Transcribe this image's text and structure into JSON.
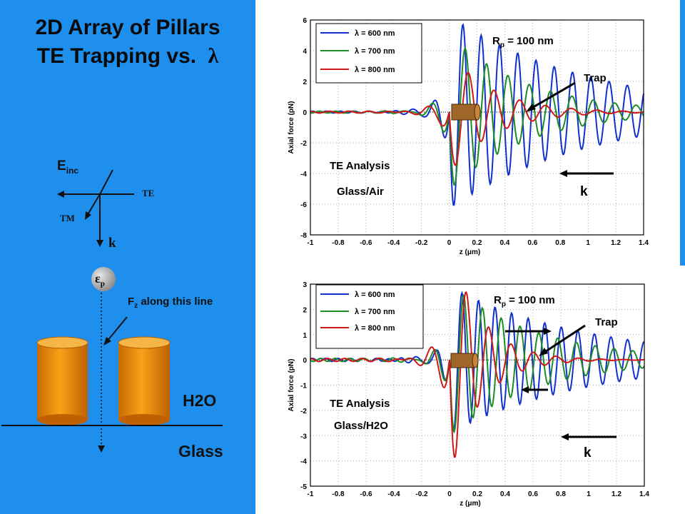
{
  "title": {
    "line1": "2D Array of Pillars",
    "line2_prefix": "TE Trapping vs.",
    "line2_symbol": "λ"
  },
  "diagram": {
    "e_inc_main": "E",
    "e_inc_sub": "inc",
    "te_label": "TE",
    "tm_label": "TM",
    "k_label": "k",
    "particle_label": "ε",
    "particle_sub": "p",
    "fz_main": "F",
    "fz_sub": "z",
    "fz_rest": " along this line",
    "medium_label": "H2O",
    "substrate_label": "Glass",
    "colors": {
      "panel": "#1f8fee",
      "pillar": "#f5a21c",
      "pillar_top": "#f0b345",
      "particle": "#b8b8b8"
    }
  },
  "chart_data": [
    {
      "type": "line",
      "ylabel": "Axial force (pN)",
      "xlabel_main": "z (",
      "xlabel_unit": "μm",
      "xlabel_close": ")",
      "xlim": [
        -1,
        1.4
      ],
      "ylim": [
        -8,
        6
      ],
      "xticks": [
        "-1",
        "-0.8",
        "-0.6",
        "-0.4",
        "-0.2",
        "0",
        "0.2",
        "0.4",
        "0.6",
        "0.8",
        "1",
        "1.2",
        "1.4"
      ],
      "yticks": [
        "-8",
        "-6",
        "-4",
        "-2",
        "0",
        "2",
        "4",
        "6"
      ],
      "legend": {
        "placement": "top-left",
        "entries": [
          "λ =  600 nm",
          "λ = 700 nm",
          "λ = 800 nm"
        ]
      },
      "annotations": {
        "radius_main": "R",
        "radius_sub": "p",
        "radius_value": " = 100 nm",
        "trap": "Trap",
        "analysis": "TE Analysis",
        "medium": "Glass/Air",
        "k": "k"
      },
      "series": [
        {
          "name": "λ =  600 nm",
          "color": "#1030d0",
          "amplitude": 6.3,
          "decay": 1.0,
          "frequency": 7.6
        },
        {
          "name": "λ = 700 nm",
          "color": "#1c8c26",
          "amplitude": 5.1,
          "decay": 1.8,
          "frequency": 6.5
        },
        {
          "name": "λ = 800 nm",
          "color": "#d01818",
          "amplitude": 4.0,
          "decay": 3.2,
          "frequency": 5.4
        }
      ]
    },
    {
      "type": "line",
      "ylabel": "Axial force (pN)",
      "xlabel_main": "z (",
      "xlabel_unit": "μm",
      "xlabel_close": ")",
      "xlim": [
        -1,
        1.4
      ],
      "ylim": [
        -5,
        3
      ],
      "xticks": [
        "-1",
        "-0.8",
        "-0.6",
        "-0.4",
        "-0.2",
        "0",
        "0.2",
        "0.4",
        "0.6",
        "0.8",
        "1",
        "1.2",
        "1.4"
      ],
      "yticks": [
        "-5",
        "-4",
        "-3",
        "-2",
        "-1",
        "0",
        "1",
        "2",
        "3"
      ],
      "legend": {
        "placement": "top-left",
        "entries": [
          "λ =  600 nm",
          "λ = 700 nm",
          "λ = 800 nm"
        ]
      },
      "annotations": {
        "radius_main": "R",
        "radius_sub": "p",
        "radius_value": " = 100 nm",
        "trap": "Trap",
        "analysis": "TE Analysis",
        "medium": "Glass/H2O",
        "k": "k"
      },
      "series": [
        {
          "name": "λ =  600 nm",
          "color": "#1030d0",
          "amplitude": 2.9,
          "decay": 1.0,
          "frequency": 8.4
        },
        {
          "name": "λ = 700 nm",
          "color": "#1c8c26",
          "amplitude": 3.0,
          "decay": 1.6,
          "frequency": 7.4
        },
        {
          "name": "λ = 800 nm",
          "color": "#d01818",
          "amplitude": 4.6,
          "decay": 4.5,
          "frequency": 6.2
        }
      ]
    }
  ]
}
